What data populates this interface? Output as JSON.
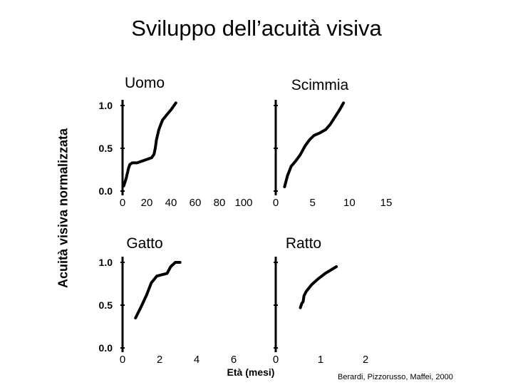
{
  "title": "Sviluppo dell’acuità visiva",
  "ylabel": "Acuità visiva normalizzata",
  "xlabel": "Età (mesi)",
  "credit": "Berardi, Pizzorusso, Maffei, 2000",
  "line_color": "#000000",
  "chart_data": [
    {
      "type": "line",
      "title": "Uomo",
      "ylim": [
        0,
        1
      ],
      "xlim": [
        0,
        100
      ],
      "yticks": [
        "0.0",
        "0.5",
        "1.0"
      ],
      "xticks": [
        {
          "v": 0,
          "label": "0"
        },
        {
          "v": 20,
          "label": "20"
        },
        {
          "v": 40,
          "label": "40"
        },
        {
          "v": 60,
          "label": "60"
        },
        {
          "v": 80,
          "label": "80"
        },
        {
          "v": 100,
          "label": "100"
        }
      ],
      "series": [
        {
          "x": [
            1,
            3,
            5,
            6,
            8,
            12,
            16,
            20,
            24,
            26,
            27,
            28,
            30,
            33,
            37,
            40,
            44
          ],
          "y": [
            0.06,
            0.15,
            0.27,
            0.31,
            0.33,
            0.33,
            0.35,
            0.37,
            0.39,
            0.43,
            0.5,
            0.6,
            0.72,
            0.83,
            0.9,
            0.95,
            1.03
          ]
        }
      ]
    },
    {
      "type": "line",
      "title": "Scimmia",
      "ylim": [
        0,
        1
      ],
      "xlim": [
        0,
        15
      ],
      "yticks": [],
      "xticks": [
        {
          "v": 0,
          "label": "0"
        },
        {
          "v": 5,
          "label": "5"
        },
        {
          "v": 10,
          "label": "10"
        },
        {
          "v": 15,
          "label": "15"
        }
      ],
      "series": [
        {
          "x": [
            1.2,
            1.6,
            2.1,
            2.6,
            3.3,
            4.0,
            4.6,
            5.2,
            6.0,
            6.8,
            7.4,
            8.0,
            8.6,
            9.2
          ],
          "y": [
            0.05,
            0.18,
            0.29,
            0.34,
            0.42,
            0.53,
            0.6,
            0.65,
            0.68,
            0.72,
            0.78,
            0.86,
            0.94,
            1.03
          ]
        }
      ]
    },
    {
      "type": "line",
      "title": "Gatto",
      "ylim": [
        0,
        1
      ],
      "xlim": [
        0,
        6
      ],
      "yticks": [
        "0.0",
        "0.5",
        "1.0"
      ],
      "xticks": [
        {
          "v": 0,
          "label": "0"
        },
        {
          "v": 2,
          "label": "2"
        },
        {
          "v": 4,
          "label": "4"
        },
        {
          "v": 6,
          "label": "6"
        }
      ],
      "series": [
        {
          "x": [
            0.7,
            1.0,
            1.3,
            1.55,
            1.85,
            2.2,
            2.4,
            2.6,
            2.85,
            3.1
          ],
          "y": [
            0.35,
            0.48,
            0.62,
            0.76,
            0.84,
            0.86,
            0.87,
            0.95,
            1.0,
            1.0
          ]
        }
      ]
    },
    {
      "type": "line",
      "title": "Ratto",
      "ylim": [
        0,
        1
      ],
      "xlim": [
        0,
        2
      ],
      "yticks": [],
      "xticks": [
        {
          "v": 0,
          "label": "0"
        },
        {
          "v": 1,
          "label": "1"
        },
        {
          "v": 2,
          "label": "2"
        }
      ],
      "series": [
        {
          "x": [
            0.55,
            0.58,
            0.61,
            0.63,
            0.68,
            0.8,
            0.95,
            1.1,
            1.35
          ],
          "y": [
            0.47,
            0.52,
            0.54,
            0.61,
            0.66,
            0.74,
            0.81,
            0.87,
            0.95
          ]
        }
      ]
    }
  ]
}
